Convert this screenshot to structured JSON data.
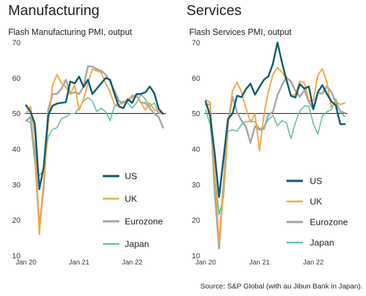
{
  "source": "Source: S&P Global (with au Jibun Bank in Japan).",
  "colors": {
    "US": "#0f5c6e",
    "UK": "#f2a640",
    "Eurozone": "#a6a6a6",
    "Japan": "#5cbf9b",
    "ref_line": "#000000"
  },
  "chart_data": [
    {
      "type": "line",
      "title": "Manufacturing",
      "subtitle": "Flash Manufacturing PMI, output",
      "ylim": [
        10,
        70
      ],
      "yticks": [
        10,
        20,
        30,
        40,
        50,
        60,
        70
      ],
      "xticks": [
        "Jan 20",
        "Jan 21",
        "Jan 22"
      ],
      "reference_line": 50,
      "legend": [
        "US",
        "UK",
        "Eurozone",
        "Japan"
      ],
      "x": [
        "2020-01",
        "2020-02",
        "2020-03",
        "2020-04",
        "2020-05",
        "2020-06",
        "2020-07",
        "2020-08",
        "2020-09",
        "2020-10",
        "2020-11",
        "2020-12",
        "2021-01",
        "2021-02",
        "2021-03",
        "2021-04",
        "2021-05",
        "2021-06",
        "2021-07",
        "2021-08",
        "2021-09",
        "2021-10",
        "2021-11",
        "2021-12",
        "2022-01",
        "2022-02",
        "2022-03",
        "2022-04",
        "2022-05",
        "2022-06",
        "2022-07",
        "2022-08"
      ],
      "series": [
        {
          "name": "US",
          "values": [
            52.3,
            50.5,
            47.0,
            28.7,
            35.0,
            49.5,
            52.2,
            52.8,
            53.0,
            53.2,
            59.0,
            58.5,
            60.4,
            57.5,
            59.5,
            55.5,
            57.0,
            58.5,
            60.0,
            59.5,
            55.5,
            52.0,
            51.5,
            54.0,
            53.0,
            55.5,
            55.5,
            56.0,
            57.6,
            55.7,
            51.3,
            49.9
          ]
        },
        {
          "name": "UK",
          "values": [
            50.0,
            52.0,
            44.0,
            15.9,
            31.0,
            47.0,
            58.0,
            61.0,
            58.5,
            57.5,
            55.5,
            58.0,
            51.0,
            54.0,
            58.5,
            62.5,
            62.0,
            61.5,
            58.5,
            56.0,
            52.5,
            52.5,
            53.0,
            54.0,
            54.5,
            55.0,
            53.0,
            51.0,
            53.0,
            51.0,
            50.5,
            50.0
          ]
        },
        {
          "name": "Eurozone",
          "values": [
            48.0,
            49.0,
            38.0,
            18.1,
            29.0,
            51.0,
            55.5,
            55.5,
            57.0,
            59.5,
            55.5,
            56.0,
            55.5,
            57.5,
            63.3,
            63.2,
            62.5,
            62.0,
            61.0,
            59.0,
            56.5,
            53.5,
            53.0,
            53.5,
            55.0,
            55.0,
            53.0,
            53.0,
            51.5,
            50.0,
            49.0,
            46.0
          ]
        },
        {
          "name": "Japan",
          "values": [
            48.0,
            47.5,
            36.0,
            32.5,
            34.0,
            43.5,
            45.5,
            46.0,
            48.5,
            49.0,
            50.0,
            50.0,
            51.5,
            53.5,
            54.5,
            53.5,
            50.5,
            51.5,
            50.5,
            48.0,
            52.0,
            52.5,
            53.5,
            53.0,
            51.5,
            53.0,
            55.5,
            54.0,
            52.0,
            53.0,
            50.0,
            50.0
          ]
        }
      ]
    },
    {
      "type": "line",
      "title": "Services",
      "subtitle": "Flash Services PMI, output",
      "ylim": [
        10,
        70
      ],
      "yticks": [
        10,
        20,
        30,
        40,
        50,
        60,
        70
      ],
      "xticks": [
        "Jan 20",
        "Jan 21",
        "Jan 22"
      ],
      "reference_line": 50,
      "legend": [
        "US",
        "UK",
        "Eurozone",
        "Japan"
      ],
      "x": [
        "2020-01",
        "2020-02",
        "2020-03",
        "2020-04",
        "2020-05",
        "2020-06",
        "2020-07",
        "2020-08",
        "2020-09",
        "2020-10",
        "2020-11",
        "2020-12",
        "2021-01",
        "2021-02",
        "2021-03",
        "2021-04",
        "2021-05",
        "2021-06",
        "2021-07",
        "2021-08",
        "2021-09",
        "2021-10",
        "2021-11",
        "2021-12",
        "2022-01",
        "2022-02",
        "2022-03",
        "2022-04",
        "2022-05",
        "2022-06",
        "2022-07",
        "2022-08"
      ],
      "series": [
        {
          "name": "US",
          "values": [
            53.4,
            49.4,
            39.0,
            26.5,
            37.5,
            48.5,
            50.0,
            55.0,
            54.6,
            56.9,
            58.4,
            55.3,
            57.5,
            59.5,
            60.5,
            64.0,
            70.0,
            64.5,
            59.5,
            55.0,
            54.5,
            58.3,
            57.0,
            57.6,
            51.2,
            56.0,
            58.0,
            55.6,
            53.4,
            52.3,
            47.0,
            47.0
          ]
        },
        {
          "name": "UK",
          "values": [
            53.9,
            53.2,
            34.5,
            13.4,
            29.0,
            47.1,
            56.5,
            58.8,
            56.1,
            51.4,
            47.6,
            49.9,
            39.5,
            49.7,
            56.3,
            61.0,
            62.9,
            61.7,
            59.6,
            55.0,
            55.4,
            59.1,
            58.6,
            53.6,
            53.6,
            60.8,
            62.6,
            58.9,
            51.8,
            53.4,
            52.5,
            53.0
          ]
        },
        {
          "name": "Eurozone",
          "values": [
            52.5,
            52.6,
            28.4,
            12.0,
            30.5,
            47.3,
            54.7,
            50.5,
            48.0,
            46.2,
            41.7,
            46.4,
            45.4,
            45.7,
            49.6,
            50.5,
            55.1,
            58.0,
            60.2,
            59.0,
            56.4,
            54.7,
            56.6,
            53.3,
            51.2,
            55.8,
            55.6,
            57.7,
            56.1,
            53.0,
            50.6,
            50.2
          ]
        },
        {
          "name": "Japan",
          "values": [
            51.0,
            47.0,
            33.8,
            21.5,
            26.5,
            45.0,
            45.4,
            45.0,
            46.9,
            47.7,
            47.8,
            47.7,
            45.7,
            46.3,
            48.3,
            49.5,
            46.5,
            48.0,
            47.4,
            42.9,
            47.4,
            50.7,
            52.1,
            52.1,
            47.1,
            44.2,
            49.3,
            50.5,
            51.0,
            54.2,
            50.3,
            49.2
          ]
        }
      ]
    }
  ]
}
